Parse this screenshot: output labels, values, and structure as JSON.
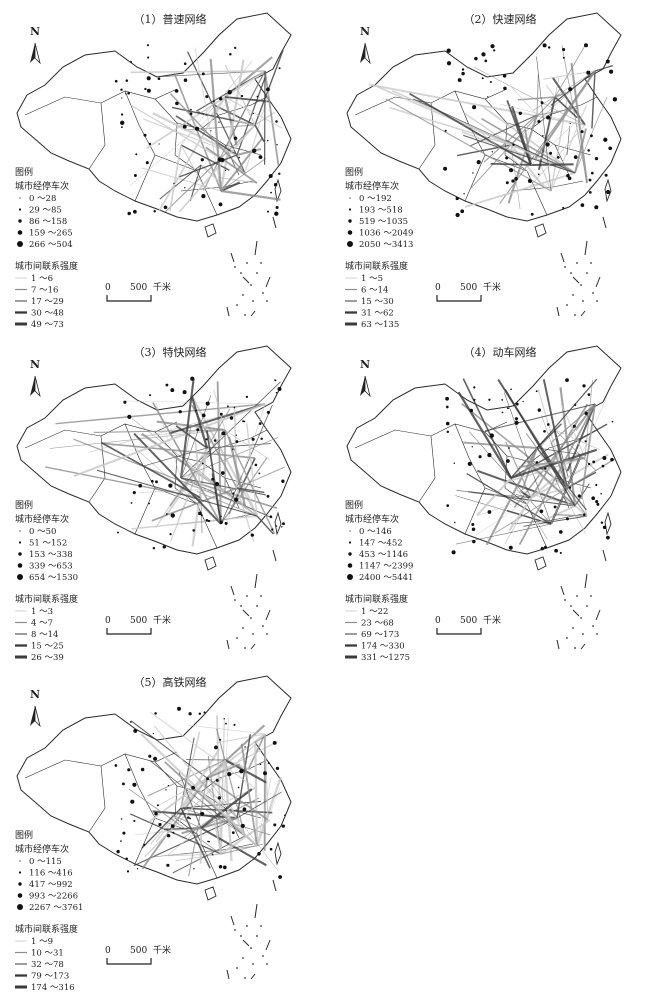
{
  "legend_heading": "图例",
  "station_stops_title": "城市经停车次",
  "link_strength_title": "城市间联系强度",
  "north_label": "N",
  "scale": {
    "zero": "0",
    "value": "500",
    "unit": "千米"
  },
  "colors": {
    "boundary": "#2a2a2a",
    "link_light": "#c8c8c8",
    "link_mid": "#8c8c8c",
    "link_dark": "#3a3a3a",
    "node": "#111111"
  },
  "panels": [
    {
      "title": "（1）普速网络",
      "stops": [
        "0 ～28",
        "29 ～85",
        "86 ～158",
        "159 ～265",
        "266 ～504"
      ],
      "strength": [
        "1 ～6",
        "7 ～16",
        "17 ～29",
        "30 ～48",
        "49 ～73"
      ]
    },
    {
      "title": "（2）快速网络",
      "stops": [
        "0 ～192",
        "193 ～518",
        "519 ～1035",
        "1036 ～2049",
        "2050 ～3413"
      ],
      "strength": [
        "1 ～5",
        "6 ～14",
        "15 ～30",
        "31 ～62",
        "63 ～135"
      ]
    },
    {
      "title": "（3）特快网络",
      "stops": [
        "0 ～50",
        "51 ～152",
        "153 ～338",
        "339 ～653",
        "654 ～1530"
      ],
      "strength": [
        "1 ～3",
        "4 ～7",
        "8 ～14",
        "15 ～25",
        "26 ～39"
      ]
    },
    {
      "title": "（4）动车网络",
      "stops": [
        "0 ～146",
        "147 ～452",
        "453 ～1146",
        "1147 ～2399",
        "2400 ～5441"
      ],
      "strength": [
        "1 ～22",
        "23 ～68",
        "69 ～173",
        "174 ～330",
        "331 ～1275"
      ]
    },
    {
      "title": "（5）高铁网络",
      "stops": [
        "0 ～115",
        "116 ～416",
        "417 ～992",
        "993 ～2266",
        "2267 ～3761"
      ],
      "strength": [
        "1 ～9",
        "10 ～31",
        "32 ～78",
        "79 ～173",
        "174 ～316"
      ]
    }
  ]
}
